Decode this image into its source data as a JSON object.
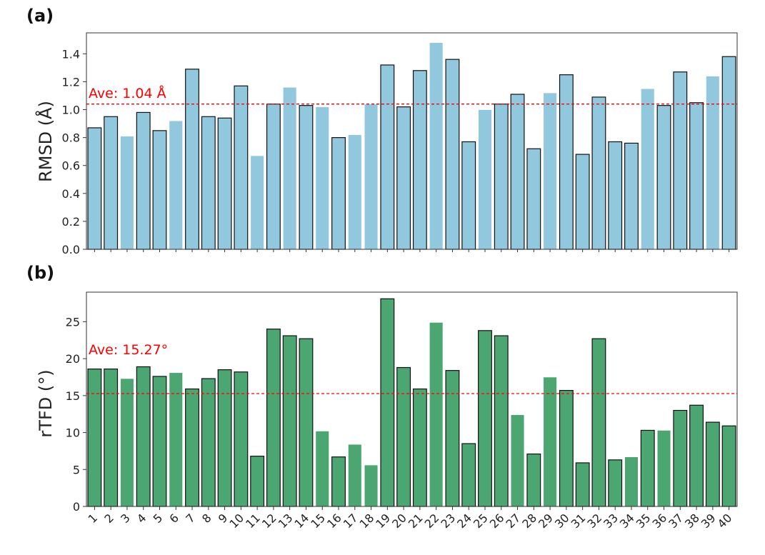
{
  "chart_data": [
    {
      "panel_label": "(a)",
      "type": "bar",
      "ylabel": "RMSD (Å)",
      "ylim": [
        0,
        1.55
      ],
      "yticks": [
        0.0,
        0.2,
        0.4,
        0.6,
        0.8,
        1.0,
        1.2,
        1.4
      ],
      "ytick_labels": [
        "0.0",
        "0.2",
        "0.4",
        "0.6",
        "0.8",
        "1.0",
        "1.2",
        "1.4"
      ],
      "bar_color": "#92c8de",
      "average": {
        "value": 1.04,
        "label": "Ave: 1.04 Å",
        "color": "#ff0000"
      },
      "categories": [
        "1",
        "2",
        "3",
        "4",
        "5",
        "6",
        "7",
        "8",
        "9",
        "10",
        "11",
        "12",
        "13",
        "14",
        "15",
        "16",
        "17",
        "18",
        "19",
        "20",
        "21",
        "22",
        "23",
        "24",
        "25",
        "26",
        "27",
        "28",
        "29",
        "30",
        "31",
        "32",
        "33",
        "34",
        "35",
        "36",
        "37",
        "38",
        "39",
        "40"
      ],
      "values": [
        0.87,
        0.95,
        0.81,
        0.98,
        0.85,
        0.92,
        1.29,
        0.95,
        0.94,
        1.17,
        0.67,
        1.04,
        1.16,
        1.03,
        1.02,
        0.8,
        0.82,
        1.04,
        1.32,
        1.02,
        1.28,
        1.48,
        1.36,
        0.77,
        1.0,
        1.04,
        1.11,
        0.72,
        1.12,
        1.25,
        0.68,
        1.09,
        0.77,
        0.76,
        1.15,
        1.03,
        1.27,
        1.05,
        1.24,
        1.38
      ],
      "outlined": [
        true,
        true,
        false,
        true,
        true,
        false,
        true,
        true,
        true,
        true,
        false,
        true,
        false,
        true,
        false,
        true,
        false,
        false,
        true,
        true,
        true,
        false,
        true,
        true,
        false,
        true,
        true,
        true,
        false,
        true,
        true,
        true,
        true,
        true,
        false,
        true,
        true,
        true,
        false,
        true
      ]
    },
    {
      "panel_label": "(b)",
      "type": "bar",
      "ylabel": "rTFD (°)",
      "ylim": [
        0,
        29
      ],
      "yticks": [
        0,
        5,
        10,
        15,
        20,
        25
      ],
      "ytick_labels": [
        "0",
        "5",
        "10",
        "15",
        "20",
        "25"
      ],
      "bar_color": "#4ca672",
      "average": {
        "value": 15.27,
        "label": "Ave: 15.27°",
        "color": "#ff0000"
      },
      "categories": [
        "1",
        "2",
        "3",
        "4",
        "5",
        "6",
        "7",
        "8",
        "9",
        "10",
        "11",
        "12",
        "13",
        "14",
        "15",
        "16",
        "17",
        "18",
        "19",
        "20",
        "21",
        "22",
        "23",
        "24",
        "25",
        "26",
        "27",
        "28",
        "29",
        "30",
        "31",
        "32",
        "33",
        "34",
        "35",
        "36",
        "37",
        "38",
        "39",
        "40"
      ],
      "values": [
        18.6,
        18.6,
        17.3,
        18.9,
        17.6,
        18.1,
        15.9,
        17.3,
        18.5,
        18.2,
        6.8,
        24.0,
        23.1,
        22.7,
        10.2,
        6.7,
        8.4,
        5.6,
        28.1,
        18.8,
        15.9,
        24.9,
        18.4,
        8.5,
        23.8,
        23.1,
        12.4,
        7.1,
        17.5,
        15.7,
        5.9,
        22.7,
        6.3,
        6.7,
        10.3,
        10.3,
        13.0,
        13.7,
        11.4,
        10.9
      ],
      "outlined": [
        true,
        true,
        false,
        true,
        true,
        false,
        true,
        true,
        true,
        true,
        true,
        true,
        true,
        true,
        false,
        true,
        false,
        false,
        true,
        true,
        true,
        false,
        true,
        true,
        true,
        true,
        false,
        true,
        false,
        true,
        true,
        true,
        true,
        false,
        true,
        false,
        true,
        true,
        true,
        true
      ]
    }
  ]
}
